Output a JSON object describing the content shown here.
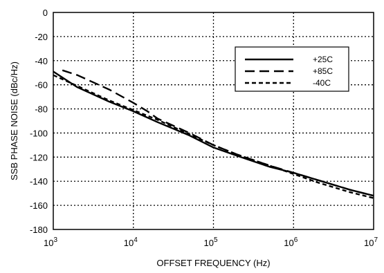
{
  "chart_data": {
    "type": "line",
    "title": "",
    "xlabel": "OFFSET FREQUENCY (Hz)",
    "ylabel": "SSB PHASE NOISE (dBc/Hz)",
    "xscale": "log",
    "xlim": [
      1000,
      10000000
    ],
    "ylim": [
      -180,
      0
    ],
    "grid": true,
    "legend_position": "top-right",
    "x_ticks": [
      {
        "value": 1000,
        "base": "10",
        "exp": "3"
      },
      {
        "value": 10000,
        "base": "10",
        "exp": "4"
      },
      {
        "value": 100000,
        "base": "10",
        "exp": "5"
      },
      {
        "value": 1000000,
        "base": "10",
        "exp": "6"
      },
      {
        "value": 10000000,
        "base": "10",
        "exp": "7"
      }
    ],
    "y_ticks": [
      {
        "value": 0,
        "label": "0"
      },
      {
        "value": -20,
        "label": "-20"
      },
      {
        "value": -40,
        "label": "-40"
      },
      {
        "value": -60,
        "label": "-60"
      },
      {
        "value": -80,
        "label": "-80"
      },
      {
        "value": -100,
        "label": "-100"
      },
      {
        "value": -120,
        "label": "-120"
      },
      {
        "value": -140,
        "label": "-140"
      },
      {
        "value": -160,
        "label": "-160"
      },
      {
        "value": -180,
        "label": "-180"
      }
    ],
    "series": [
      {
        "name": "+25C",
        "style": "solid",
        "color": "#000000",
        "points": [
          [
            1000,
            -49
          ],
          [
            2000,
            -62
          ],
          [
            5000,
            -74
          ],
          [
            10000,
            -82
          ],
          [
            20000,
            -91
          ],
          [
            50000,
            -102
          ],
          [
            100000,
            -112
          ],
          [
            200000,
            -119
          ],
          [
            500000,
            -128
          ],
          [
            1000000,
            -133
          ],
          [
            2000000,
            -139
          ],
          [
            5000000,
            -147
          ],
          [
            10000000,
            -152
          ]
        ]
      },
      {
        "name": "+85C",
        "style": "long-dash",
        "color": "#000000",
        "points": [
          [
            1300,
            -48
          ],
          [
            2000,
            -52
          ],
          [
            5000,
            -64
          ],
          [
            10000,
            -75
          ],
          [
            15000,
            -82
          ],
          [
            20000,
            -88
          ],
          [
            50000,
            -100
          ],
          [
            100000,
            -110
          ],
          [
            200000,
            -118
          ],
          [
            500000,
            -127
          ],
          [
            1000000,
            -133
          ],
          [
            2000000,
            -139
          ],
          [
            5000000,
            -147
          ],
          [
            10000000,
            -152
          ]
        ]
      },
      {
        "name": "-40C",
        "style": "short-dash",
        "color": "#000000",
        "points": [
          [
            1000,
            -52
          ],
          [
            2000,
            -61
          ],
          [
            5000,
            -73
          ],
          [
            10000,
            -81
          ],
          [
            20000,
            -89
          ],
          [
            50000,
            -101
          ],
          [
            100000,
            -110
          ],
          [
            200000,
            -118
          ],
          [
            500000,
            -127
          ],
          [
            1000000,
            -134
          ],
          [
            2000000,
            -141
          ],
          [
            5000000,
            -149
          ],
          [
            10000000,
            -154
          ]
        ]
      }
    ]
  }
}
